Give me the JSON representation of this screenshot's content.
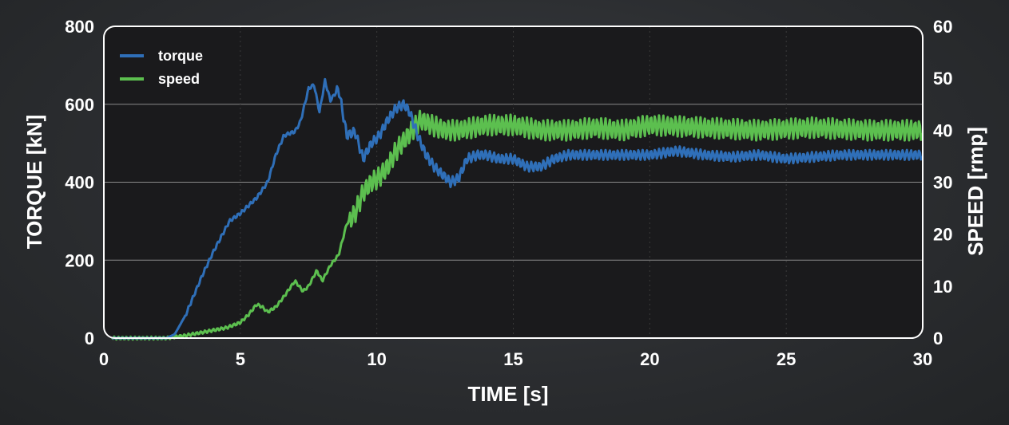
{
  "chart_data": {
    "type": "line",
    "xlabel": "TIME [s]",
    "ylabel_left": "TORQUE [kN]",
    "ylabel_right": "SPEED [rmp]",
    "xlim": [
      0,
      30
    ],
    "ylim_left": [
      0,
      800
    ],
    "ylim_right": [
      0,
      60
    ],
    "x_ticks": [
      0,
      5,
      10,
      15,
      20,
      25,
      30
    ],
    "y_left_ticks": [
      0,
      200,
      400,
      600,
      800
    ],
    "y_right_ticks": [
      0,
      10,
      20,
      30,
      40,
      50,
      60
    ],
    "grid": "horizontal",
    "legend_position": "top-left",
    "colors": {
      "torque": "#2f6fb8",
      "speed": "#5cbf4f",
      "plot_bg": "#1a1a1c",
      "frame": "#ffffff",
      "grid": "#8a8a8a"
    },
    "series": [
      {
        "name": "torque",
        "axis": "left",
        "x": [
          0.3,
          2.3,
          2.6,
          3.0,
          3.3,
          3.6,
          4.0,
          4.3,
          4.6,
          5.0,
          5.3,
          5.6,
          6.0,
          6.3,
          6.6,
          7.0,
          7.2,
          7.5,
          7.7,
          7.9,
          8.1,
          8.3,
          8.6,
          8.9,
          9.2,
          9.5,
          9.8,
          10.1,
          10.4,
          10.7,
          11.0,
          11.2,
          11.5,
          11.8,
          12.1,
          12.4,
          12.7,
          13.0,
          13.3,
          13.7,
          14.0,
          14.5,
          15.0,
          15.5,
          16.0,
          16.5,
          17.0,
          18.0,
          19.0,
          20.0,
          21.0,
          22.0,
          23.0,
          24.0,
          25.0,
          26.0,
          27.0,
          28.0,
          29.0,
          30.0
        ],
        "values": [
          0,
          0,
          10,
          60,
          110,
          160,
          220,
          260,
          300,
          320,
          340,
          360,
          400,
          470,
          520,
          530,
          555,
          640,
          650,
          580,
          660,
          610,
          640,
          520,
          530,
          460,
          500,
          520,
          560,
          590,
          600,
          580,
          520,
          470,
          440,
          420,
          400,
          410,
          460,
          470,
          470,
          460,
          460,
          440,
          440,
          460,
          470,
          470,
          470,
          470,
          480,
          470,
          465,
          470,
          460,
          465,
          470,
          470,
          470,
          470
        ]
      },
      {
        "name": "speed",
        "axis": "right",
        "x": [
          0.3,
          2.3,
          3.0,
          3.5,
          4.0,
          4.5,
          5.0,
          5.3,
          5.6,
          5.8,
          6.0,
          6.3,
          6.6,
          7.0,
          7.3,
          7.5,
          7.8,
          8.0,
          8.3,
          8.6,
          8.9,
          9.2,
          9.5,
          9.8,
          10.1,
          10.4,
          10.7,
          11.0,
          11.3,
          11.6,
          12.0,
          12.5,
          13.0,
          13.5,
          14.0,
          15.0,
          16.0,
          17.0,
          18.0,
          19.0,
          20.0,
          22.0,
          24.0,
          26.0,
          28.0,
          30.0
        ],
        "values": [
          0,
          0,
          0.5,
          1,
          1.5,
          2,
          3,
          4.5,
          6.5,
          6,
          5,
          6,
          8,
          11,
          9,
          10,
          13,
          11,
          14,
          16,
          22,
          24,
          28,
          30,
          31,
          33,
          36,
          38,
          40,
          42,
          41,
          40,
          40,
          40.5,
          41,
          41,
          40,
          40,
          40.5,
          40,
          41,
          40.5,
          40,
          40.5,
          40,
          40
        ]
      }
    ]
  }
}
